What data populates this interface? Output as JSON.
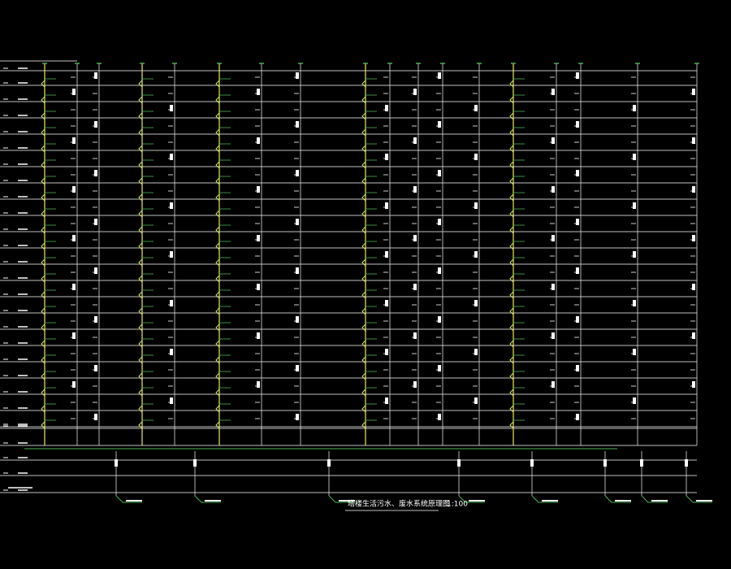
{
  "drawing": {
    "title": "塔楼生活污水、废水系统原理图",
    "scale": "1:100"
  }
}
